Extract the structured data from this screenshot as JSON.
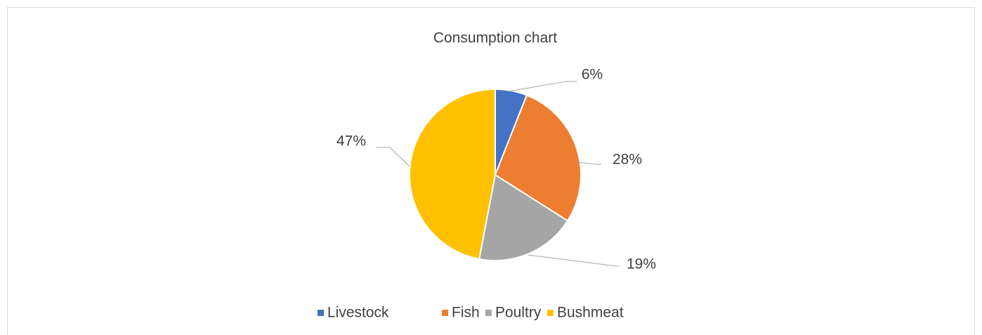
{
  "chart_data": {
    "type": "pie",
    "title": "Consumption chart",
    "categories": [
      "Livestock",
      "Fish",
      "Poultry",
      "Bushmeat"
    ],
    "values": [
      6,
      28,
      19,
      47
    ],
    "value_labels": [
      "6%",
      "28%",
      "19%",
      "47%"
    ],
    "colors": [
      "#4472c4",
      "#ed7d31",
      "#a5a5a5",
      "#ffc000"
    ],
    "legend": "bottom"
  }
}
